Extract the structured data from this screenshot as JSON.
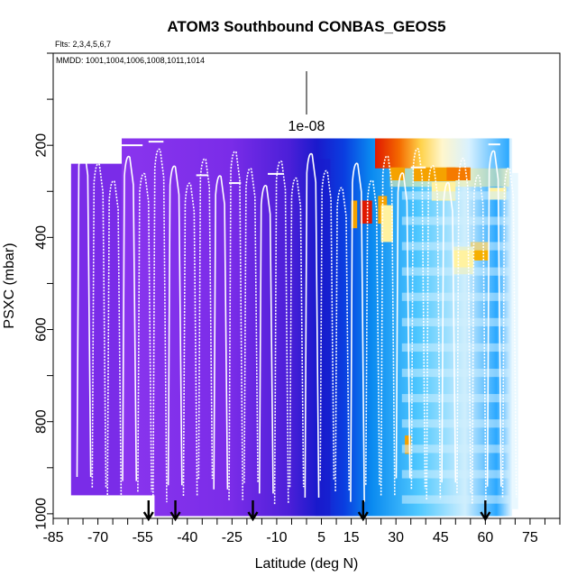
{
  "chart_data": {
    "type": "heatmap",
    "title": "ATOM3 Southbound CONBAS_GEOS5",
    "flights_label": "Flts: 2,3,4,5,6,7",
    "dates_label": "MMDD: 1001,1004,1006,1008,1011,1014",
    "scale_label": "1e-08",
    "xlabel": "Latitude (deg N)",
    "ylabel": "PSXC (mbar)",
    "xlim": [
      -85,
      85
    ],
    "ylim": [
      1010,
      0
    ],
    "x_tick_labels": [
      "-85",
      "-70",
      "-55",
      "-40",
      "-25",
      "-10",
      "5",
      "15",
      "30",
      "45",
      "60",
      "75"
    ],
    "x_tick_values": [
      -85,
      -70,
      -55,
      -40,
      -25,
      -10,
      5,
      15,
      30,
      45,
      60,
      75
    ],
    "y_ticks": [
      {
        "label": "200",
        "value": 200
      },
      {
        "label": "400",
        "value": 400
      },
      {
        "label": "600",
        "value": 600
      },
      {
        "label": "800",
        "value": 800
      },
      {
        "label": "1000",
        "value": 1000
      }
    ],
    "arrow_latitudes": [
      -53,
      -44,
      -18,
      19,
      60
    ],
    "colors": {
      "purple": "#7a2ce8",
      "deep_blue": "#1a1acc",
      "azure": "#00a6ff",
      "pale_blue": "#cfeefd",
      "pale_yellow": "#fff2a0",
      "orange": "#f5a200",
      "red": "#e01800",
      "track": "#ffffff"
    }
  }
}
